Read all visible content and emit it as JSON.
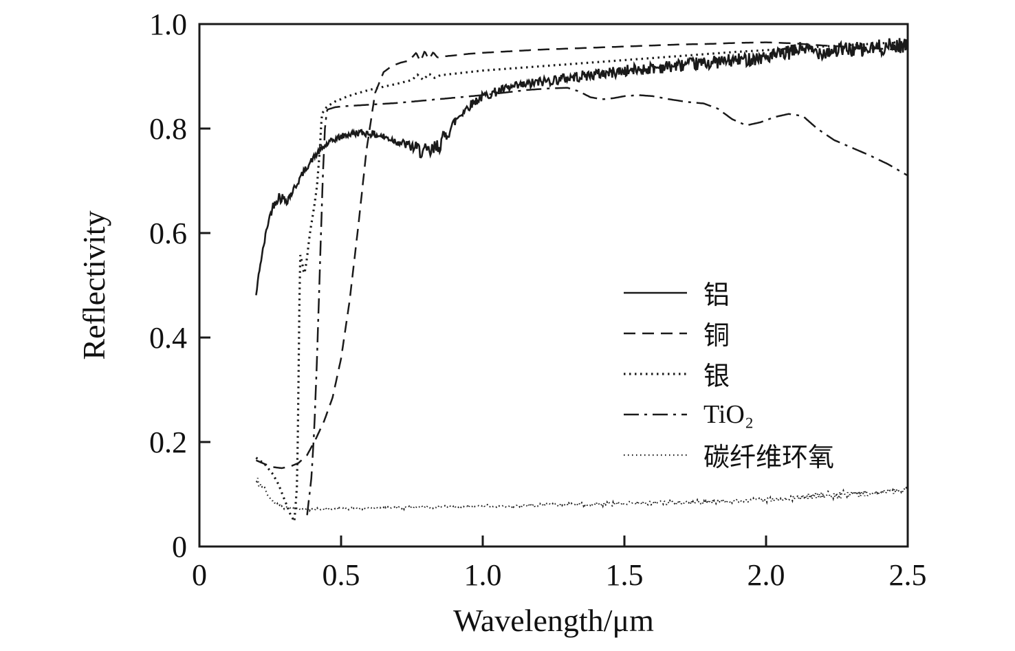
{
  "chart_data": {
    "type": "line",
    "title": "",
    "xlabel": "Wavelength/μm",
    "ylabel": "Reflectivity",
    "xlim": [
      0,
      2.5
    ],
    "ylim": [
      0,
      1.0
    ],
    "grid": false,
    "legend_position": "inside-right",
    "line_color": "#1a1a1a",
    "noise_seed": 42,
    "x_ticks": [
      0,
      0.5,
      1.0,
      1.5,
      2.0,
      2.5
    ],
    "x_tick_labels": [
      "0",
      "0.5",
      "1.0",
      "1.5",
      "2.0",
      "2.5"
    ],
    "y_ticks": [
      0,
      0.2,
      0.4,
      0.6,
      0.8,
      1.0
    ],
    "y_tick_labels": [
      "0",
      "0.2",
      "0.4",
      "0.6",
      "0.8",
      "1.0"
    ],
    "series": [
      {
        "name": "aluminum",
        "label": "铝",
        "style": "solid",
        "width": 2.6,
        "noise": 0.005,
        "noise_growth": 2.2,
        "noise_bumps": [
          {
            "x": 0.82,
            "w": 0.05,
            "a": 0.01
          },
          {
            "x": 0.29,
            "w": 0.03,
            "a": 0.006
          }
        ],
        "points": [
          [
            0.2,
            0.48
          ],
          [
            0.205,
            0.5
          ],
          [
            0.21,
            0.525
          ],
          [
            0.22,
            0.555
          ],
          [
            0.23,
            0.585
          ],
          [
            0.24,
            0.615
          ],
          [
            0.25,
            0.635
          ],
          [
            0.26,
            0.652
          ],
          [
            0.27,
            0.663
          ],
          [
            0.28,
            0.67
          ],
          [
            0.29,
            0.668
          ],
          [
            0.3,
            0.663
          ],
          [
            0.31,
            0.665
          ],
          [
            0.32,
            0.672
          ],
          [
            0.34,
            0.69
          ],
          [
            0.36,
            0.71
          ],
          [
            0.38,
            0.727
          ],
          [
            0.4,
            0.742
          ],
          [
            0.42,
            0.755
          ],
          [
            0.45,
            0.77
          ],
          [
            0.48,
            0.78
          ],
          [
            0.52,
            0.788
          ],
          [
            0.56,
            0.792
          ],
          [
            0.6,
            0.791
          ],
          [
            0.64,
            0.786
          ],
          [
            0.68,
            0.779
          ],
          [
            0.72,
            0.771
          ],
          [
            0.76,
            0.763
          ],
          [
            0.79,
            0.756
          ],
          [
            0.81,
            0.752
          ],
          [
            0.83,
            0.76
          ],
          [
            0.85,
            0.772
          ],
          [
            0.88,
            0.795
          ],
          [
            0.91,
            0.82
          ],
          [
            0.94,
            0.838
          ],
          [
            0.97,
            0.851
          ],
          [
            1.0,
            0.861
          ],
          [
            1.05,
            0.871
          ],
          [
            1.1,
            0.878
          ],
          [
            1.2,
            0.889
          ],
          [
            1.3,
            0.897
          ],
          [
            1.4,
            0.904
          ],
          [
            1.5,
            0.91
          ],
          [
            1.6,
            0.916
          ],
          [
            1.7,
            0.921
          ],
          [
            1.8,
            0.926
          ],
          [
            1.9,
            0.931
          ],
          [
            2.0,
            0.937
          ],
          [
            2.05,
            0.941
          ],
          [
            2.1,
            0.948
          ],
          [
            2.13,
            0.955
          ],
          [
            2.16,
            0.948
          ],
          [
            2.2,
            0.947
          ],
          [
            2.25,
            0.95
          ],
          [
            2.3,
            0.952
          ],
          [
            2.35,
            0.95
          ],
          [
            2.4,
            0.955
          ],
          [
            2.45,
            0.958
          ],
          [
            2.5,
            0.96
          ]
        ]
      },
      {
        "name": "copper",
        "label": "铜",
        "style": "dashed",
        "width": 2.5,
        "noise": 0,
        "noise_growth": 0,
        "noise_bumps": [],
        "points": [
          [
            0.2,
            0.165
          ],
          [
            0.23,
            0.158
          ],
          [
            0.26,
            0.152
          ],
          [
            0.29,
            0.15
          ],
          [
            0.32,
            0.153
          ],
          [
            0.35,
            0.16
          ],
          [
            0.38,
            0.175
          ],
          [
            0.41,
            0.205
          ],
          [
            0.44,
            0.24
          ],
          [
            0.47,
            0.285
          ],
          [
            0.5,
            0.36
          ],
          [
            0.53,
            0.47
          ],
          [
            0.56,
            0.61
          ],
          [
            0.59,
            0.76
          ],
          [
            0.62,
            0.868
          ],
          [
            0.65,
            0.908
          ],
          [
            0.68,
            0.92
          ],
          [
            0.71,
            0.926
          ],
          [
            0.74,
            0.93
          ],
          [
            0.765,
            0.945
          ],
          [
            0.78,
            0.928
          ],
          [
            0.795,
            0.948
          ],
          [
            0.81,
            0.932
          ],
          [
            0.825,
            0.946
          ],
          [
            0.84,
            0.936
          ],
          [
            0.86,
            0.938
          ],
          [
            0.9,
            0.94
          ],
          [
            0.95,
            0.943
          ],
          [
            1.0,
            0.945
          ],
          [
            1.1,
            0.948
          ],
          [
            1.2,
            0.951
          ],
          [
            1.3,
            0.953
          ],
          [
            1.4,
            0.955
          ],
          [
            1.5,
            0.957
          ],
          [
            1.6,
            0.959
          ],
          [
            1.7,
            0.961
          ],
          [
            1.8,
            0.962
          ],
          [
            1.9,
            0.964
          ],
          [
            2.0,
            0.965
          ],
          [
            2.1,
            0.963
          ],
          [
            2.2,
            0.959
          ],
          [
            2.3,
            0.956
          ],
          [
            2.4,
            0.953
          ],
          [
            2.5,
            0.95
          ]
        ]
      },
      {
        "name": "silver",
        "label": "银",
        "style": "dotted",
        "width": 3.2,
        "noise": 0,
        "noise_growth": 0,
        "noise_bumps": [],
        "points": [
          [
            0.2,
            0.17
          ],
          [
            0.23,
            0.158
          ],
          [
            0.26,
            0.138
          ],
          [
            0.28,
            0.118
          ],
          [
            0.3,
            0.09
          ],
          [
            0.32,
            0.063
          ],
          [
            0.335,
            0.048
          ],
          [
            0.345,
            0.12
          ],
          [
            0.35,
            0.33
          ],
          [
            0.355,
            0.56
          ],
          [
            0.362,
            0.545
          ],
          [
            0.37,
            0.52
          ],
          [
            0.378,
            0.545
          ],
          [
            0.39,
            0.6
          ],
          [
            0.405,
            0.65
          ],
          [
            0.415,
            0.69
          ],
          [
            0.425,
            0.76
          ],
          [
            0.432,
            0.828
          ],
          [
            0.45,
            0.842
          ],
          [
            0.48,
            0.852
          ],
          [
            0.52,
            0.861
          ],
          [
            0.56,
            0.868
          ],
          [
            0.6,
            0.874
          ],
          [
            0.65,
            0.88
          ],
          [
            0.7,
            0.886
          ],
          [
            0.75,
            0.893
          ],
          [
            0.77,
            0.903
          ],
          [
            0.79,
            0.893
          ],
          [
            0.81,
            0.905
          ],
          [
            0.83,
            0.897
          ],
          [
            0.85,
            0.902
          ],
          [
            0.9,
            0.905
          ],
          [
            1.0,
            0.911
          ],
          [
            1.1,
            0.915
          ],
          [
            1.2,
            0.919
          ],
          [
            1.3,
            0.923
          ],
          [
            1.4,
            0.927
          ],
          [
            1.5,
            0.931
          ],
          [
            1.6,
            0.935
          ],
          [
            1.7,
            0.939
          ],
          [
            1.8,
            0.943
          ],
          [
            1.9,
            0.947
          ],
          [
            2.0,
            0.95
          ],
          [
            2.1,
            0.954
          ],
          [
            2.2,
            0.957
          ],
          [
            2.3,
            0.96
          ],
          [
            2.4,
            0.963
          ],
          [
            2.5,
            0.966
          ]
        ]
      },
      {
        "name": "tio2",
        "label": "TiO₂",
        "style": "dashdot",
        "width": 2.5,
        "noise": 0,
        "noise_growth": 0,
        "noise_bumps": [],
        "points": [
          [
            0.38,
            0.06
          ],
          [
            0.395,
            0.13
          ],
          [
            0.405,
            0.22
          ],
          [
            0.415,
            0.36
          ],
          [
            0.425,
            0.53
          ],
          [
            0.435,
            0.7
          ],
          [
            0.443,
            0.8
          ],
          [
            0.45,
            0.836
          ],
          [
            0.48,
            0.841
          ],
          [
            0.52,
            0.843
          ],
          [
            0.58,
            0.845
          ],
          [
            0.64,
            0.847
          ],
          [
            0.7,
            0.849
          ],
          [
            0.76,
            0.852
          ],
          [
            0.82,
            0.855
          ],
          [
            0.88,
            0.858
          ],
          [
            0.94,
            0.861
          ],
          [
            1.0,
            0.864
          ],
          [
            1.08,
            0.869
          ],
          [
            1.16,
            0.874
          ],
          [
            1.24,
            0.877
          ],
          [
            1.3,
            0.878
          ],
          [
            1.34,
            0.871
          ],
          [
            1.38,
            0.86
          ],
          [
            1.42,
            0.856
          ],
          [
            1.46,
            0.858
          ],
          [
            1.5,
            0.862
          ],
          [
            1.55,
            0.864
          ],
          [
            1.6,
            0.862
          ],
          [
            1.66,
            0.856
          ],
          [
            1.72,
            0.851
          ],
          [
            1.78,
            0.848
          ],
          [
            1.83,
            0.838
          ],
          [
            1.88,
            0.818
          ],
          [
            1.93,
            0.806
          ],
          [
            1.98,
            0.812
          ],
          [
            2.03,
            0.822
          ],
          [
            2.08,
            0.828
          ],
          [
            2.13,
            0.824
          ],
          [
            2.18,
            0.8
          ],
          [
            2.24,
            0.778
          ],
          [
            2.3,
            0.764
          ],
          [
            2.36,
            0.75
          ],
          [
            2.43,
            0.732
          ],
          [
            2.5,
            0.71
          ]
        ]
      },
      {
        "name": "carbon-fiber-epoxy",
        "label": "碳纤维环氧",
        "style": "finedot",
        "width": 2.2,
        "noise": 0.002,
        "noise_growth": 1.5,
        "noise_bumps": [
          {
            "x": 0.21,
            "w": 0.015,
            "a": 0.006
          },
          {
            "x": 2.25,
            "w": 0.08,
            "a": 0.003
          }
        ],
        "points": [
          [
            0.2,
            0.128
          ],
          [
            0.21,
            0.122
          ],
          [
            0.22,
            0.118
          ],
          [
            0.24,
            0.1
          ],
          [
            0.26,
            0.086
          ],
          [
            0.28,
            0.078
          ],
          [
            0.3,
            0.074
          ],
          [
            0.34,
            0.072
          ],
          [
            0.4,
            0.071
          ],
          [
            0.5,
            0.072
          ],
          [
            0.6,
            0.073
          ],
          [
            0.7,
            0.074
          ],
          [
            0.8,
            0.0755
          ],
          [
            0.9,
            0.076
          ],
          [
            1.0,
            0.077
          ],
          [
            1.15,
            0.0785
          ],
          [
            1.3,
            0.08
          ],
          [
            1.45,
            0.0815
          ],
          [
            1.6,
            0.083
          ],
          [
            1.75,
            0.085
          ],
          [
            1.9,
            0.087
          ],
          [
            2.0,
            0.089
          ],
          [
            2.1,
            0.093
          ],
          [
            2.18,
            0.098
          ],
          [
            2.25,
            0.099
          ],
          [
            2.32,
            0.101
          ],
          [
            2.4,
            0.104
          ],
          [
            2.5,
            0.108
          ]
        ]
      }
    ]
  }
}
